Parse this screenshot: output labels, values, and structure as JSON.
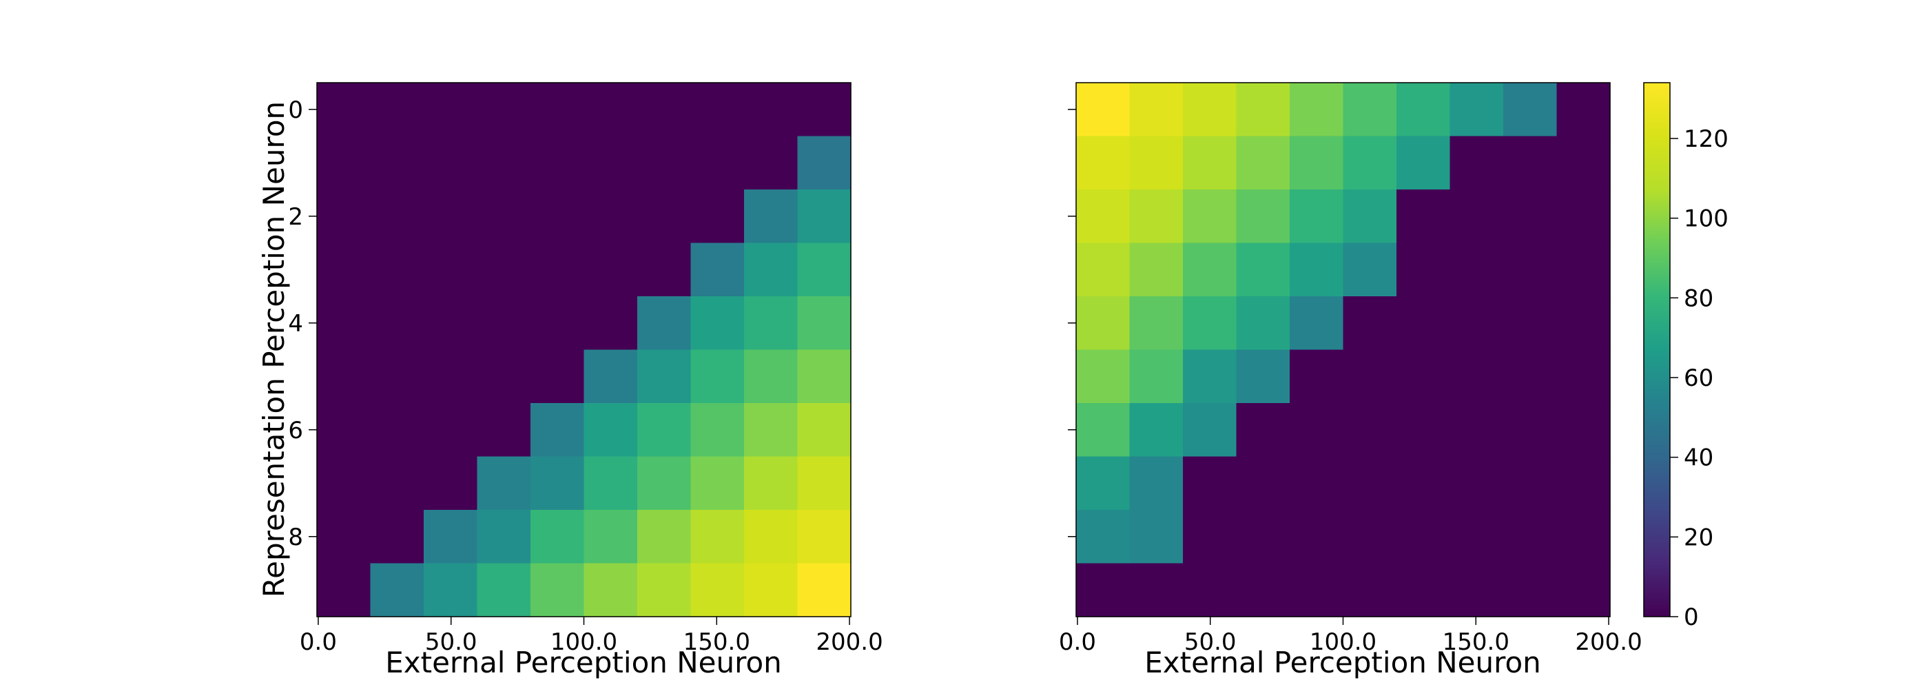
{
  "chart_data": [
    {
      "type": "heatmap",
      "xlabel": "External Perception Neuron",
      "ylabel": "Representation Perception Neuron",
      "x_tick_labels": [
        "0.0",
        "50.0",
        "100.0",
        "150.0",
        "200.0"
      ],
      "y_tick_labels": [
        "0",
        "2",
        "4",
        "6",
        "8"
      ],
      "values": [
        [
          0,
          0,
          0,
          0,
          0,
          0,
          0,
          0,
          0,
          0
        ],
        [
          0,
          0,
          0,
          0,
          0,
          0,
          0,
          0,
          0,
          48
        ],
        [
          0,
          0,
          0,
          0,
          0,
          0,
          0,
          0,
          52,
          64
        ],
        [
          0,
          0,
          0,
          0,
          0,
          0,
          0,
          50,
          66,
          76
        ],
        [
          0,
          0,
          0,
          0,
          0,
          0,
          52,
          68,
          76,
          86
        ],
        [
          0,
          0,
          0,
          0,
          0,
          52,
          64,
          78,
          88,
          96
        ],
        [
          0,
          0,
          0,
          0,
          52,
          68,
          78,
          88,
          98,
          106
        ],
        [
          0,
          0,
          0,
          54,
          58,
          76,
          86,
          96,
          106,
          116
        ],
        [
          0,
          0,
          52,
          60,
          80,
          86,
          100,
          108,
          118,
          124
        ],
        [
          0,
          52,
          62,
          76,
          90,
          100,
          106,
          116,
          122,
          134
        ]
      ]
    },
    {
      "type": "heatmap",
      "xlabel": "External Perception Neuron",
      "ylabel": "",
      "x_tick_labels": [
        "0.0",
        "50.0",
        "100.0",
        "150.0",
        "200.0"
      ],
      "y_tick_labels": [],
      "values": [
        [
          134,
          124,
          116,
          106,
          96,
          86,
          76,
          64,
          52,
          0
        ],
        [
          122,
          118,
          106,
          98,
          88,
          78,
          66,
          0,
          0,
          0
        ],
        [
          116,
          108,
          98,
          90,
          78,
          70,
          0,
          0,
          0,
          0
        ],
        [
          108,
          100,
          88,
          78,
          68,
          58,
          0,
          0,
          0,
          0
        ],
        [
          104,
          90,
          80,
          70,
          54,
          0,
          0,
          0,
          0,
          0
        ],
        [
          96,
          86,
          64,
          56,
          0,
          0,
          0,
          0,
          0,
          0
        ],
        [
          86,
          68,
          60,
          0,
          0,
          0,
          0,
          0,
          0,
          0
        ],
        [
          66,
          56,
          0,
          0,
          0,
          0,
          0,
          0,
          0,
          0
        ],
        [
          58,
          56,
          0,
          0,
          0,
          0,
          0,
          0,
          0,
          0
        ],
        [
          0,
          0,
          0,
          0,
          0,
          0,
          0,
          0,
          0,
          0
        ]
      ]
    }
  ],
  "colorbar": {
    "colormap": "viridis",
    "range": [
      0,
      134
    ],
    "tick_values": [
      0,
      20,
      40,
      60,
      80,
      100,
      120
    ],
    "tick_labels": [
      "0",
      "20",
      "40",
      "60",
      "80",
      "100",
      "120"
    ]
  }
}
